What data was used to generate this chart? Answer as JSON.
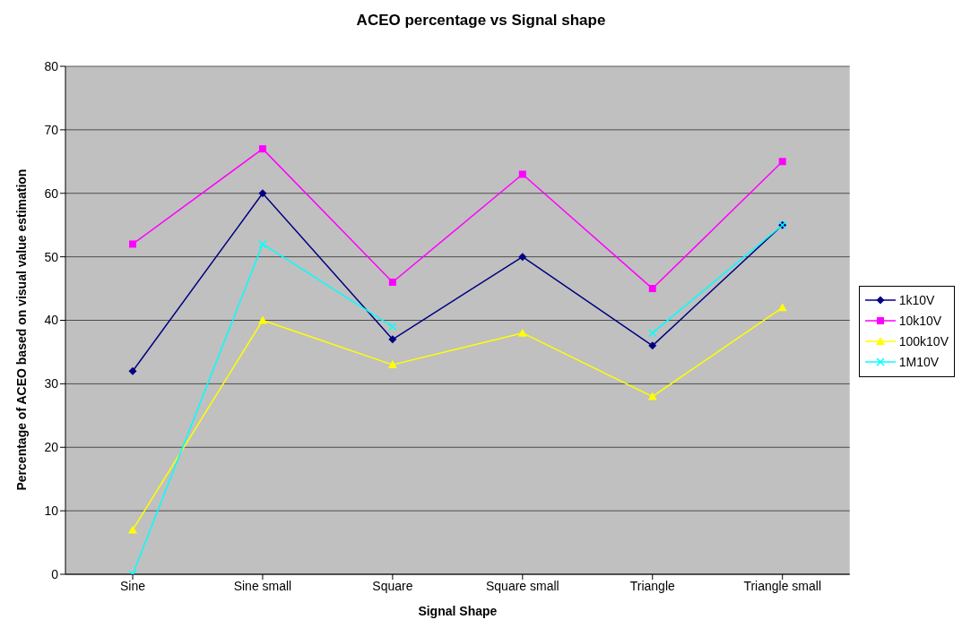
{
  "chart_data": {
    "type": "line",
    "title": "ACEO percentage vs Signal shape",
    "xlabel": "Signal Shape",
    "ylabel": "Percentage of ACEO based on visual value estimation",
    "categories": [
      "Sine",
      "Sine small",
      "Square",
      "Square small",
      "Triangle",
      "Triangle small"
    ],
    "series": [
      {
        "name": "1k10V",
        "color": "#000080",
        "marker": "diamond",
        "values": [
          32,
          60,
          37,
          50,
          36,
          55
        ]
      },
      {
        "name": "10k10V",
        "color": "#ff00ff",
        "marker": "square",
        "values": [
          52,
          67,
          46,
          63,
          45,
          65
        ]
      },
      {
        "name": "100k10V",
        "color": "#ffff00",
        "marker": "triangle",
        "values": [
          7,
          40,
          33,
          38,
          28,
          42
        ]
      },
      {
        "name": "1M10V",
        "color": "#00ffff",
        "marker": "cross",
        "values": [
          0,
          52,
          39,
          null,
          38,
          55
        ]
      }
    ],
    "ylim": [
      0,
      80
    ],
    "yticks": [
      0,
      10,
      20,
      30,
      40,
      50,
      60,
      70,
      80
    ],
    "grid": "y",
    "legend": "right",
    "line_style": "solid"
  }
}
